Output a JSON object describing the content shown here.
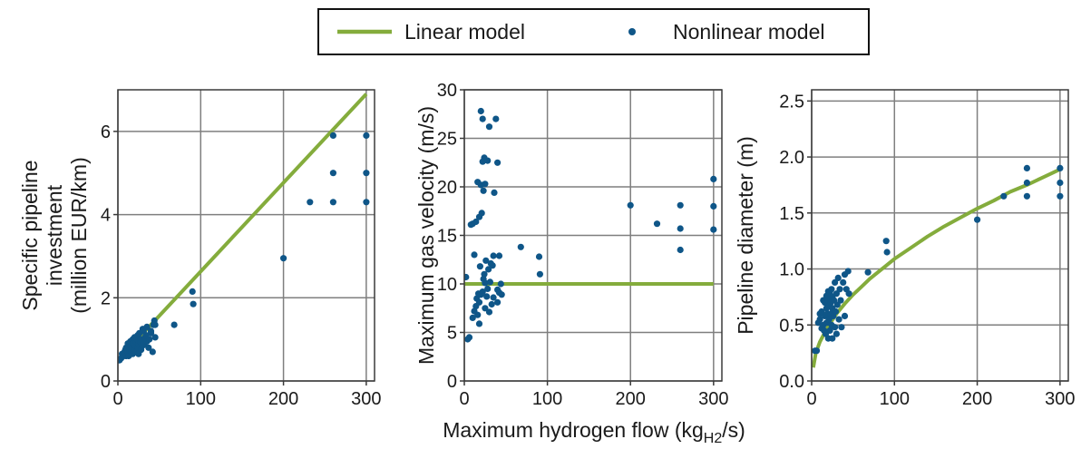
{
  "colors": {
    "line": "#84ac3c",
    "points": "#0f5688",
    "grid": "#7f7f7f",
    "frame": "#3a3a3a"
  },
  "legend": {
    "placement": "top-center",
    "linear": "Linear model",
    "nonlinear": "Nonlinear model"
  },
  "shared_xlabel": {
    "main": "Maximum hydrogen flow (kg",
    "sub": "H2",
    "end": "/s)"
  },
  "chart_data": [
    {
      "type": "scatter",
      "title": "",
      "xlabel": "",
      "ylabel": "Specific pipeline|investment|(million EUR/km)",
      "xlim": [
        0,
        310
      ],
      "ylim": [
        0,
        7
      ],
      "xticks": [
        0,
        100,
        200,
        300
      ],
      "yticks": [
        0,
        2,
        4,
        6
      ],
      "grid": true,
      "series": [
        {
          "name": "Linear model",
          "kind": "line",
          "x": [
            0,
            300
          ],
          "y": [
            0.5,
            6.9
          ]
        },
        {
          "name": "Nonlinear model",
          "kind": "points",
          "x": [
            2,
            4,
            5,
            7,
            8,
            9,
            10,
            10,
            12,
            12,
            13,
            14,
            15,
            15,
            16,
            17,
            18,
            18,
            19,
            20,
            20,
            21,
            22,
            22,
            23,
            24,
            24,
            25,
            25,
            26,
            27,
            28,
            28,
            30,
            30,
            31,
            32,
            33,
            34,
            35,
            35,
            37,
            38,
            40,
            40,
            42,
            43,
            44,
            45,
            45,
            68,
            90,
            91,
            200,
            232,
            260,
            260,
            260,
            300,
            300,
            300
          ],
          "y": [
            0.5,
            0.55,
            0.65,
            0.6,
            0.7,
            0.75,
            0.6,
            0.8,
            0.7,
            0.9,
            0.6,
            0.75,
            0.85,
            0.95,
            0.7,
            0.8,
            0.65,
            1.0,
            0.9,
            0.75,
            1.05,
            0.85,
            0.7,
            0.95,
            1.0,
            0.8,
            1.1,
            0.9,
            0.65,
            1.15,
            0.95,
            0.75,
            1.0,
            0.85,
            1.25,
            1.2,
            0.9,
            1.05,
            1.1,
            0.95,
            1.3,
            0.8,
            1.0,
            1.15,
            1.2,
            0.7,
            1.35,
            1.45,
            1.05,
            1.35,
            1.35,
            2.15,
            1.85,
            2.95,
            4.3,
            4.3,
            5.0,
            5.9,
            4.3,
            5.0,
            5.9
          ]
        }
      ]
    },
    {
      "type": "scatter",
      "title": "",
      "xlabel": "",
      "ylabel": "Maximum gas velocity (m/s)",
      "xlim": [
        0,
        310
      ],
      "ylim": [
        0,
        30
      ],
      "xticks": [
        0,
        100,
        200,
        300
      ],
      "yticks": [
        0,
        5,
        10,
        15,
        20,
        25,
        30
      ],
      "grid": true,
      "series": [
        {
          "name": "Linear model",
          "kind": "line",
          "x": [
            0,
            300
          ],
          "y": [
            10,
            10
          ]
        },
        {
          "name": "Nonlinear model",
          "kind": "points",
          "x": [
            2,
            4,
            6,
            8,
            10,
            10,
            12,
            12,
            14,
            14,
            15,
            16,
            16,
            17,
            18,
            18,
            18,
            19,
            20,
            20,
            20,
            21,
            22,
            22,
            22,
            23,
            23,
            24,
            24,
            25,
            25,
            25,
            26,
            27,
            28,
            28,
            29,
            30,
            30,
            31,
            32,
            33,
            34,
            35,
            35,
            36,
            38,
            40,
            40,
            40,
            42,
            42,
            44,
            45,
            68,
            90,
            91,
            200,
            232,
            260,
            260,
            260,
            300,
            300,
            300
          ],
          "y": [
            10.7,
            4.3,
            4.5,
            16.1,
            16.2,
            6.5,
            7.2,
            13.0,
            7.7,
            16.4,
            8.5,
            6.8,
            20.5,
            9.0,
            8.1,
            16.9,
            5.9,
            11.8,
            20.2,
            27.8,
            8.9,
            17.3,
            22.6,
            27.0,
            9.2,
            10.5,
            19.6,
            11.0,
            23.0,
            7.5,
            10.1,
            20.3,
            12.4,
            8.7,
            9.5,
            22.7,
            11.5,
            7.1,
            26.2,
            10.2,
            12.1,
            7.9,
            11.9,
            12.9,
            8.6,
            19.4,
            27.0,
            8.1,
            9.4,
            22.5,
            9.1,
            12.9,
            10.0,
            8.9,
            13.8,
            12.8,
            11.0,
            18.1,
            16.2,
            18.1,
            15.7,
            13.5,
            20.8,
            18.0,
            15.6
          ]
        }
      ]
    },
    {
      "type": "scatter",
      "title": "",
      "xlabel": "",
      "ylabel": "Pipeline diameter (m)",
      "xlim": [
        0,
        310
      ],
      "ylim": [
        0,
        2.6
      ],
      "xticks": [
        0,
        100,
        200,
        300
      ],
      "yticks": [
        0.0,
        0.5,
        1.0,
        1.5,
        2.0,
        2.5
      ],
      "grid": true,
      "series": [
        {
          "name": "Linear model",
          "kind": "line",
          "x": [
            2,
            5,
            10,
            15,
            20,
            30,
            40,
            50,
            60,
            70,
            80,
            90,
            100,
            120,
            140,
            160,
            180,
            200,
            220,
            240,
            260,
            280,
            300
          ],
          "y": [
            0.12,
            0.25,
            0.35,
            0.42,
            0.49,
            0.6,
            0.69,
            0.77,
            0.84,
            0.91,
            0.97,
            1.03,
            1.09,
            1.19,
            1.29,
            1.38,
            1.46,
            1.54,
            1.61,
            1.69,
            1.75,
            1.82,
            1.89
          ]
        },
        {
          "name": "Nonlinear model",
          "kind": "points",
          "x": [
            4,
            6,
            8,
            10,
            10,
            12,
            12,
            14,
            14,
            15,
            16,
            16,
            17,
            18,
            18,
            18,
            19,
            20,
            20,
            20,
            21,
            22,
            22,
            22,
            23,
            23,
            24,
            24,
            25,
            25,
            25,
            26,
            27,
            28,
            28,
            29,
            30,
            30,
            31,
            32,
            33,
            34,
            35,
            36,
            38,
            40,
            40,
            42,
            44,
            45,
            68,
            90,
            91,
            200,
            232,
            260,
            260,
            260,
            300,
            300,
            300
          ],
          "y": [
            0.27,
            0.27,
            0.52,
            0.55,
            0.6,
            0.47,
            0.62,
            0.5,
            0.72,
            0.45,
            0.58,
            0.7,
            0.42,
            0.65,
            0.52,
            0.76,
            0.6,
            0.38,
            0.72,
            0.8,
            0.55,
            0.68,
            0.45,
            0.78,
            0.6,
            0.7,
            0.5,
            0.82,
            0.65,
            0.38,
            0.75,
            0.58,
            0.72,
            0.48,
            0.88,
            0.62,
            0.78,
            0.42,
            0.68,
            0.92,
            0.55,
            0.82,
            0.72,
            0.48,
            0.88,
            0.95,
            0.58,
            0.82,
            0.98,
            0.78,
            0.97,
            1.25,
            1.15,
            1.44,
            1.65,
            1.65,
            1.77,
            1.9,
            1.65,
            1.77,
            1.9
          ]
        }
      ]
    }
  ]
}
